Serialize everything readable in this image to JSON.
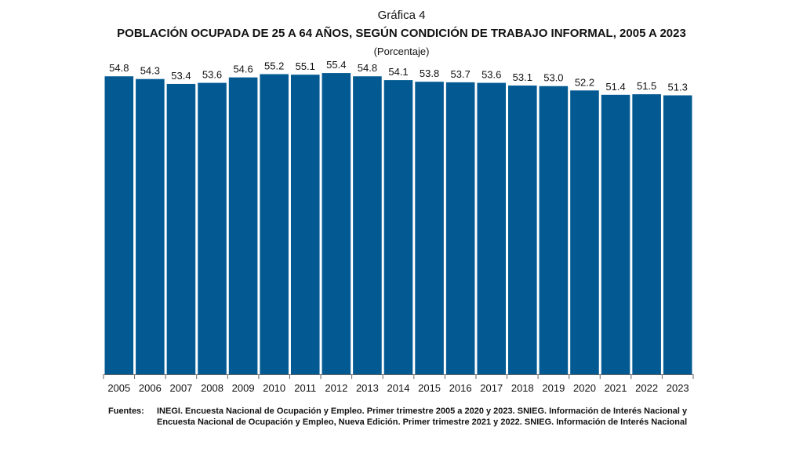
{
  "figure_label": "Gráfica 4",
  "title": "Población ocupada de 25 a 64 años, según condición de trabajo informal, 2005 a 2023",
  "subtitle": "(Porcentaje)",
  "colors": {
    "bar": "#035a93",
    "axis": "#666666"
  },
  "chart_data": {
    "type": "bar",
    "categories": [
      "2005",
      "2006",
      "2007",
      "2008",
      "2009",
      "2010",
      "2011",
      "2012",
      "2013",
      "2014",
      "2015",
      "2016",
      "2017",
      "2018",
      "2019",
      "2020",
      "2021",
      "2022",
      "2023"
    ],
    "values": [
      54.8,
      54.3,
      53.4,
      53.6,
      54.6,
      55.2,
      55.1,
      55.4,
      54.8,
      54.1,
      53.8,
      53.7,
      53.6,
      53.1,
      53.0,
      52.2,
      51.4,
      51.5,
      51.3
    ],
    "value_labels": [
      "54.8",
      "54.3",
      "53.4",
      "53.6",
      "54.6",
      "55.2",
      "55.1",
      "55.4",
      "54.8",
      "54.1",
      "53.8",
      "53.7",
      "53.6",
      "53.1",
      "53.0",
      "52.2",
      "51.4",
      "51.5",
      "51.3"
    ],
    "title": "Población ocupada de 25 a 64 años, según condición de trabajo informal, 2005 a 2023",
    "xlabel": "",
    "ylabel": "",
    "ylim": [
      0,
      57
    ]
  },
  "source": {
    "label": "Fuentes:",
    "text": "INEGI. Encuesta Nacional de Ocupación y Empleo. Primer trimestre 2005 a 2020 y 2023. SNIEG. Información de Interés Nacional y Encuesta Nacional de Ocupación y Empleo, Nueva Edición. Primer trimestre 2021 y 2022. SNIEG. Información de Interés Nacional"
  }
}
